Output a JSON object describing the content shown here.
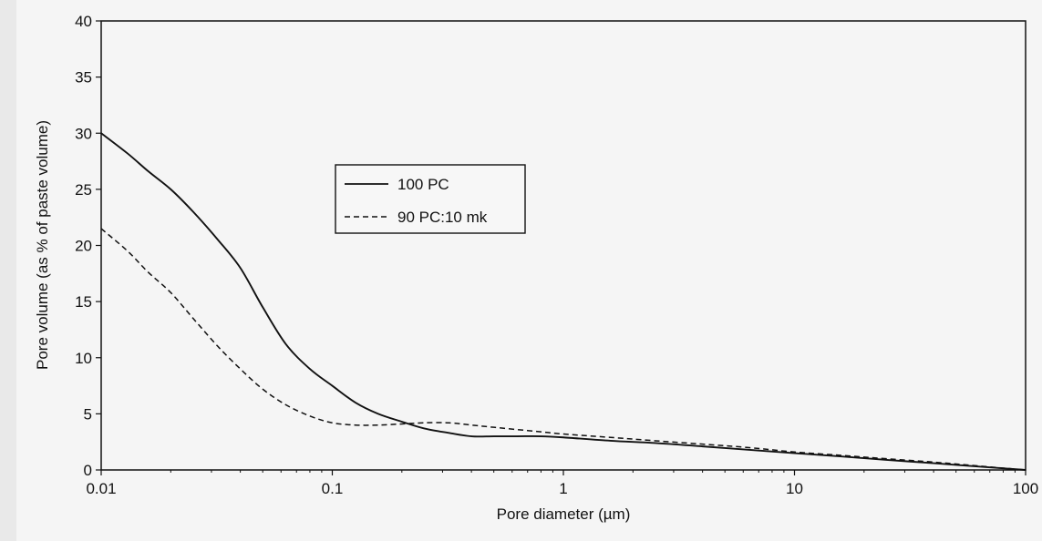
{
  "chart_data": {
    "type": "line",
    "xlabel": "Pore diameter (µm)",
    "ylabel": "Pore volume (as % of paste volume)",
    "xscale": "log",
    "xlim": [
      0.01,
      100
    ],
    "ylim": [
      0,
      40
    ],
    "xticks": [
      0.01,
      0.1,
      1,
      10,
      100
    ],
    "xtick_labels": [
      "0.01",
      "0.1",
      "1",
      "10",
      "100"
    ],
    "yticks": [
      0,
      5,
      10,
      15,
      20,
      25,
      30,
      35,
      40
    ],
    "ytick_labels": [
      "0",
      "5",
      "10",
      "15",
      "20",
      "25",
      "30",
      "35",
      "40"
    ],
    "grid": false,
    "legend_position": "upper-left-center",
    "colors": {
      "line": "#111111",
      "frame": "#111111",
      "paper": "#f5f5f5",
      "margin": "#e9e9e9"
    },
    "series": [
      {
        "name": "100 PC",
        "style": "solid",
        "x": [
          0.01,
          0.013,
          0.016,
          0.02,
          0.025,
          0.032,
          0.04,
          0.05,
          0.063,
          0.08,
          0.1,
          0.126,
          0.158,
          0.2,
          0.25,
          0.32,
          0.4,
          0.5,
          0.63,
          0.8,
          1,
          1.6,
          2.5,
          4,
          6.3,
          10,
          16,
          25,
          40,
          63,
          100
        ],
        "y": [
          30,
          28.2,
          26.6,
          25,
          23,
          20.5,
          18,
          14.5,
          11.2,
          9,
          7.5,
          6,
          5,
          4.3,
          3.7,
          3.3,
          3.0,
          3.0,
          3.0,
          3.0,
          2.9,
          2.6,
          2.4,
          2.1,
          1.8,
          1.5,
          1.2,
          0.9,
          0.6,
          0.3,
          0
        ]
      },
      {
        "name": "90 PC:10 mk",
        "style": "dashed",
        "x": [
          0.01,
          0.013,
          0.016,
          0.02,
          0.025,
          0.032,
          0.04,
          0.05,
          0.063,
          0.08,
          0.1,
          0.126,
          0.158,
          0.2,
          0.25,
          0.32,
          0.4,
          0.5,
          0.63,
          0.8,
          1,
          1.6,
          2.5,
          4,
          6.3,
          10,
          16,
          25,
          40,
          63,
          100
        ],
        "y": [
          21.5,
          19.5,
          17.6,
          15.8,
          13.5,
          11,
          9,
          7.2,
          5.8,
          4.8,
          4.2,
          4.0,
          4.0,
          4.1,
          4.2,
          4.2,
          4.0,
          3.8,
          3.6,
          3.4,
          3.2,
          2.9,
          2.6,
          2.3,
          2.0,
          1.6,
          1.3,
          1.0,
          0.7,
          0.35,
          0
        ]
      }
    ]
  }
}
